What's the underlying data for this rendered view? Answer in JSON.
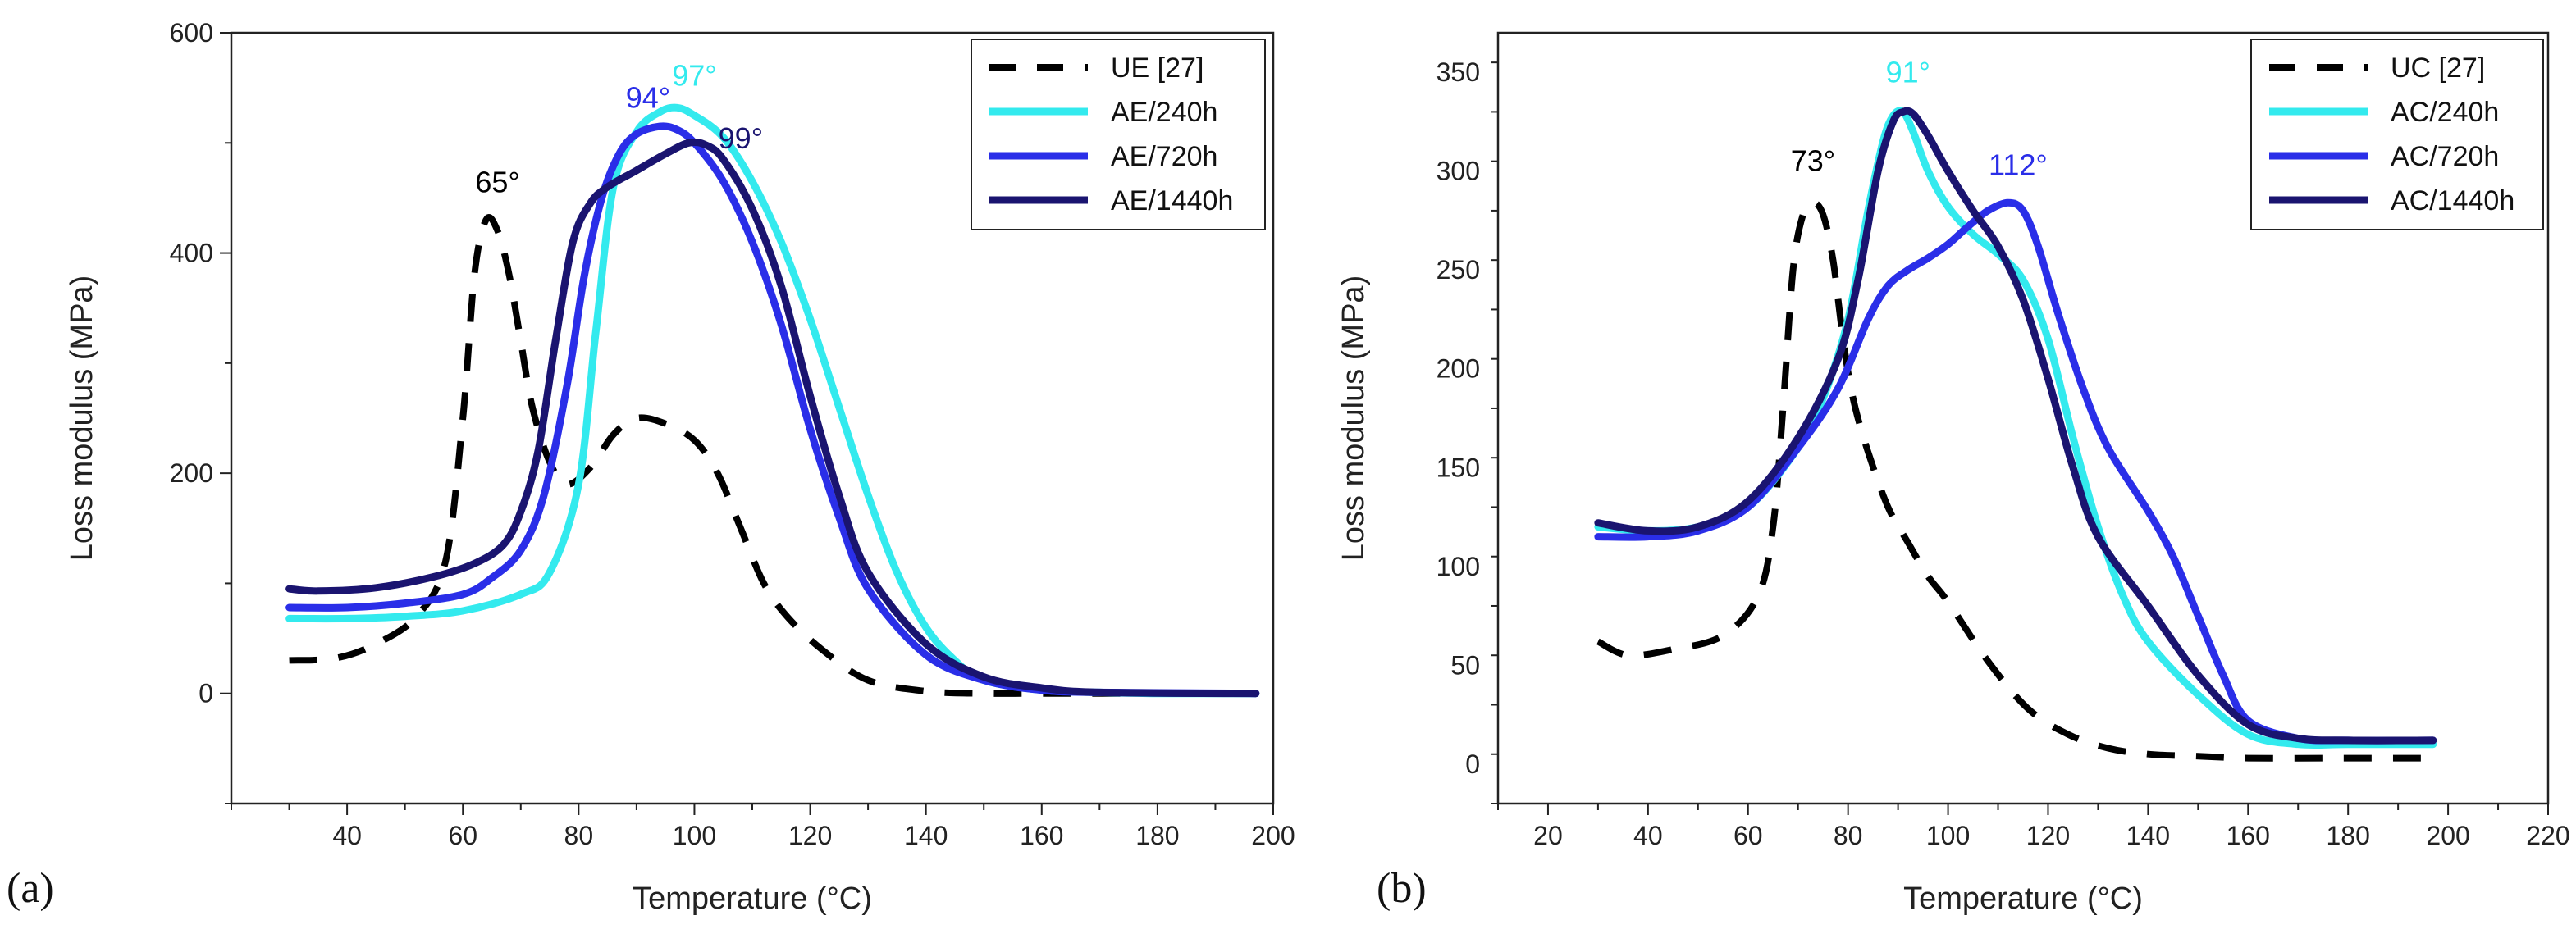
{
  "panels": [
    {
      "label": "(a)"
    },
    {
      "label": "(b)"
    }
  ],
  "chart_data": [
    {
      "type": "line",
      "panel": "(a)",
      "xlabel": "Temperature (°C)",
      "ylabel": "Loss modulus (MPa)",
      "xlim": [
        20,
        200
      ],
      "ylim": [
        -100,
        600
      ],
      "xticks": [
        40,
        60,
        80,
        100,
        120,
        140,
        160,
        180,
        200
      ],
      "yticks": [
        0,
        200,
        400,
        600
      ],
      "legend_position": "top-right",
      "series": [
        {
          "name": "UE [27]",
          "color": "#000000",
          "style": "dashed",
          "x": [
            30,
            38,
            45,
            52,
            57,
            60,
            62,
            64,
            66,
            68,
            70,
            72,
            75,
            78,
            82,
            86,
            90,
            95,
            100,
            104,
            108,
            112,
            116,
            122,
            130,
            140,
            150,
            160,
            180,
            197
          ],
          "y": [
            30,
            32,
            45,
            70,
            120,
            250,
            380,
            430,
            420,
            380,
            320,
            260,
            210,
            190,
            205,
            235,
            250,
            245,
            230,
            200,
            150,
            100,
            70,
            40,
            12,
            2,
            0,
            0,
            0,
            0
          ]
        },
        {
          "name": "AE/240h",
          "color": "#33eaee",
          "style": "solid",
          "x": [
            30,
            40,
            50,
            60,
            70,
            75,
            80,
            83,
            86,
            90,
            94,
            97,
            100,
            105,
            110,
            115,
            120,
            125,
            130,
            135,
            140,
            145,
            150,
            160,
            170,
            180,
            197
          ],
          "y": [
            68,
            68,
            70,
            75,
            90,
            110,
            190,
            330,
            460,
            510,
            528,
            532,
            525,
            505,
            465,
            410,
            340,
            260,
            180,
            110,
            60,
            30,
            12,
            3,
            1,
            0,
            0
          ]
        },
        {
          "name": "AE/720h",
          "color": "#2a2ee8",
          "style": "solid",
          "x": [
            30,
            40,
            50,
            60,
            65,
            70,
            74,
            78,
            81,
            84,
            87,
            90,
            94,
            97,
            100,
            105,
            110,
            115,
            120,
            125,
            130,
            140,
            150,
            160,
            170,
            197
          ],
          "y": [
            78,
            78,
            82,
            90,
            105,
            130,
            180,
            280,
            380,
            450,
            490,
            508,
            515,
            512,
            500,
            465,
            410,
            335,
            240,
            160,
            95,
            35,
            12,
            3,
            1,
            0
          ]
        },
        {
          "name": "AE/1440h",
          "color": "#1a1470",
          "style": "solid",
          "x": [
            30,
            35,
            45,
            55,
            62,
            67,
            70,
            73,
            76,
            79,
            82,
            85,
            90,
            95,
            99,
            102,
            105,
            110,
            115,
            120,
            125,
            130,
            140,
            150,
            160,
            170,
            197
          ],
          "y": [
            95,
            93,
            96,
            106,
            118,
            135,
            165,
            220,
            320,
            410,
            445,
            460,
            475,
            490,
            500,
            498,
            485,
            440,
            370,
            270,
            180,
            110,
            45,
            15,
            5,
            1,
            0
          ]
        }
      ],
      "annotations": [
        {
          "text": "65°",
          "x": 66,
          "y": 455,
          "color": "#000000"
        },
        {
          "text": "94°",
          "x": 92,
          "y": 532,
          "color": "#2a2ee8"
        },
        {
          "text": "97°",
          "x": 100,
          "y": 552,
          "color": "#33eaee"
        },
        {
          "text": "99°",
          "x": 108,
          "y": 495,
          "color": "#1a1470"
        }
      ]
    },
    {
      "type": "line",
      "panel": "(b)",
      "xlabel": "Temperature (°C)",
      "ylabel": "Loss modulus (MPa)",
      "xlim": [
        10,
        220
      ],
      "ylim": [
        -20,
        370
      ],
      "xticks": [
        20,
        40,
        60,
        80,
        100,
        120,
        140,
        160,
        180,
        200,
        220
      ],
      "yticks": [
        0,
        50,
        100,
        150,
        200,
        250,
        300,
        350
      ],
      "legend_position": "top-right",
      "series": [
        {
          "name": "UC [27]",
          "color": "#000000",
          "style": "dashed",
          "x": [
            30,
            36,
            45,
            55,
            62,
            65,
            67,
            69,
            71,
            73,
            75,
            77,
            79,
            81,
            84,
            88,
            92,
            96,
            100,
            108,
            116,
            124,
            132,
            140,
            150,
            160,
            175,
            190,
            197
          ],
          "y": [
            62,
            55,
            58,
            65,
            85,
            120,
            180,
            250,
            278,
            284,
            278,
            255,
            215,
            185,
            158,
            130,
            112,
            95,
            82,
            52,
            28,
            15,
            8,
            5,
            4,
            3,
            3,
            3,
            3
          ]
        },
        {
          "name": "AC/240h",
          "color": "#33eaee",
          "style": "solid",
          "x": [
            30,
            40,
            50,
            60,
            70,
            75,
            80,
            84,
            87,
            89,
            91,
            93,
            96,
            100,
            105,
            110,
            115,
            120,
            125,
            130,
            135,
            140,
            150,
            160,
            170,
            180,
            197
          ],
          "y": [
            120,
            118,
            120,
            130,
            160,
            185,
            225,
            280,
            315,
            328,
            330,
            320,
            300,
            282,
            268,
            258,
            245,
            215,
            165,
            120,
            85,
            62,
            35,
            15,
            10,
            10,
            10
          ]
        },
        {
          "name": "AC/720h",
          "color": "#2a2ee8",
          "style": "solid",
          "x": [
            30,
            40,
            50,
            60,
            70,
            78,
            84,
            88,
            92,
            96,
            100,
            104,
            108,
            112,
            115,
            118,
            122,
            127,
            132,
            140,
            145,
            150,
            155,
            160,
            170,
            180,
            197
          ],
          "y": [
            115,
            115,
            118,
            130,
            160,
            190,
            225,
            242,
            250,
            256,
            263,
            272,
            280,
            284,
            280,
            262,
            228,
            190,
            160,
            128,
            105,
            75,
            45,
            22,
            13,
            12,
            12
          ]
        },
        {
          "name": "AC/1440h",
          "color": "#1a1470",
          "style": "solid",
          "x": [
            30,
            40,
            50,
            60,
            70,
            78,
            82,
            86,
            89,
            91,
            93,
            96,
            100,
            105,
            110,
            115,
            120,
            125,
            130,
            140,
            150,
            160,
            170,
            180,
            197
          ],
          "y": [
            122,
            118,
            120,
            133,
            165,
            205,
            245,
            300,
            325,
            330,
            329,
            318,
            300,
            280,
            262,
            235,
            195,
            150,
            115,
            80,
            45,
            20,
            13,
            12,
            12
          ]
        }
      ],
      "annotations": [
        {
          "text": "73°",
          "x": 73,
          "y": 300,
          "color": "#000000"
        },
        {
          "text": "91°",
          "x": 92,
          "y": 345,
          "color": "#33eaee"
        },
        {
          "text": "112°",
          "x": 114,
          "y": 298,
          "color": "#2a2ee8"
        }
      ]
    }
  ]
}
